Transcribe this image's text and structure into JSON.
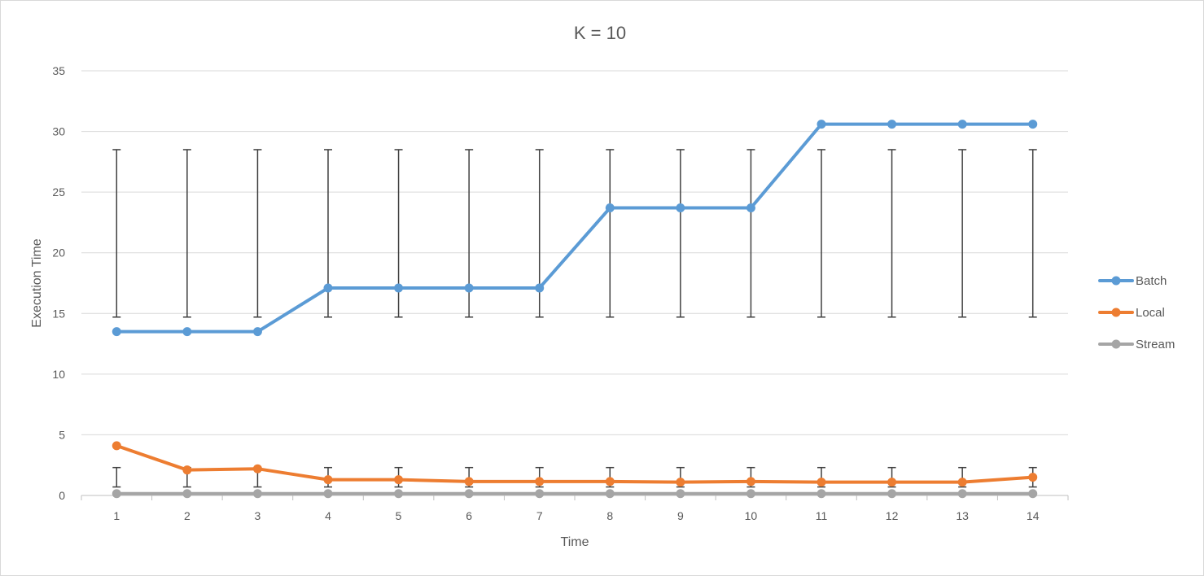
{
  "chart_data": {
    "type": "line",
    "title": "K = 10",
    "xlabel": "Time",
    "ylabel": "Execution Time",
    "categories": [
      "1",
      "2",
      "3",
      "4",
      "5",
      "6",
      "7",
      "8",
      "9",
      "10",
      "11",
      "12",
      "13",
      "14"
    ],
    "ylim": [
      0,
      35
    ],
    "yticks": [
      0,
      5,
      10,
      15,
      20,
      25,
      30,
      35
    ],
    "grid": true,
    "legend_position": "right",
    "series": [
      {
        "name": "Batch",
        "color": "#5b9bd5",
        "values": [
          13.5,
          13.5,
          13.5,
          17.1,
          17.1,
          17.1,
          17.1,
          23.7,
          23.7,
          23.7,
          30.6,
          30.6,
          30.6,
          30.6
        ],
        "error_bars": {
          "low": 14.7,
          "high": 28.5
        }
      },
      {
        "name": "Local",
        "color": "#ed7d31",
        "values": [
          4.1,
          2.1,
          2.2,
          1.3,
          1.3,
          1.15,
          1.15,
          1.15,
          1.1,
          1.15,
          1.1,
          1.1,
          1.1,
          1.5
        ],
        "error_bars": {
          "low": 0.7,
          "high": 2.3
        }
      },
      {
        "name": "Stream",
        "color": "#a5a5a5",
        "values": [
          0.15,
          0.15,
          0.15,
          0.15,
          0.15,
          0.15,
          0.15,
          0.15,
          0.15,
          0.15,
          0.15,
          0.15,
          0.15,
          0.15
        ]
      }
    ]
  }
}
